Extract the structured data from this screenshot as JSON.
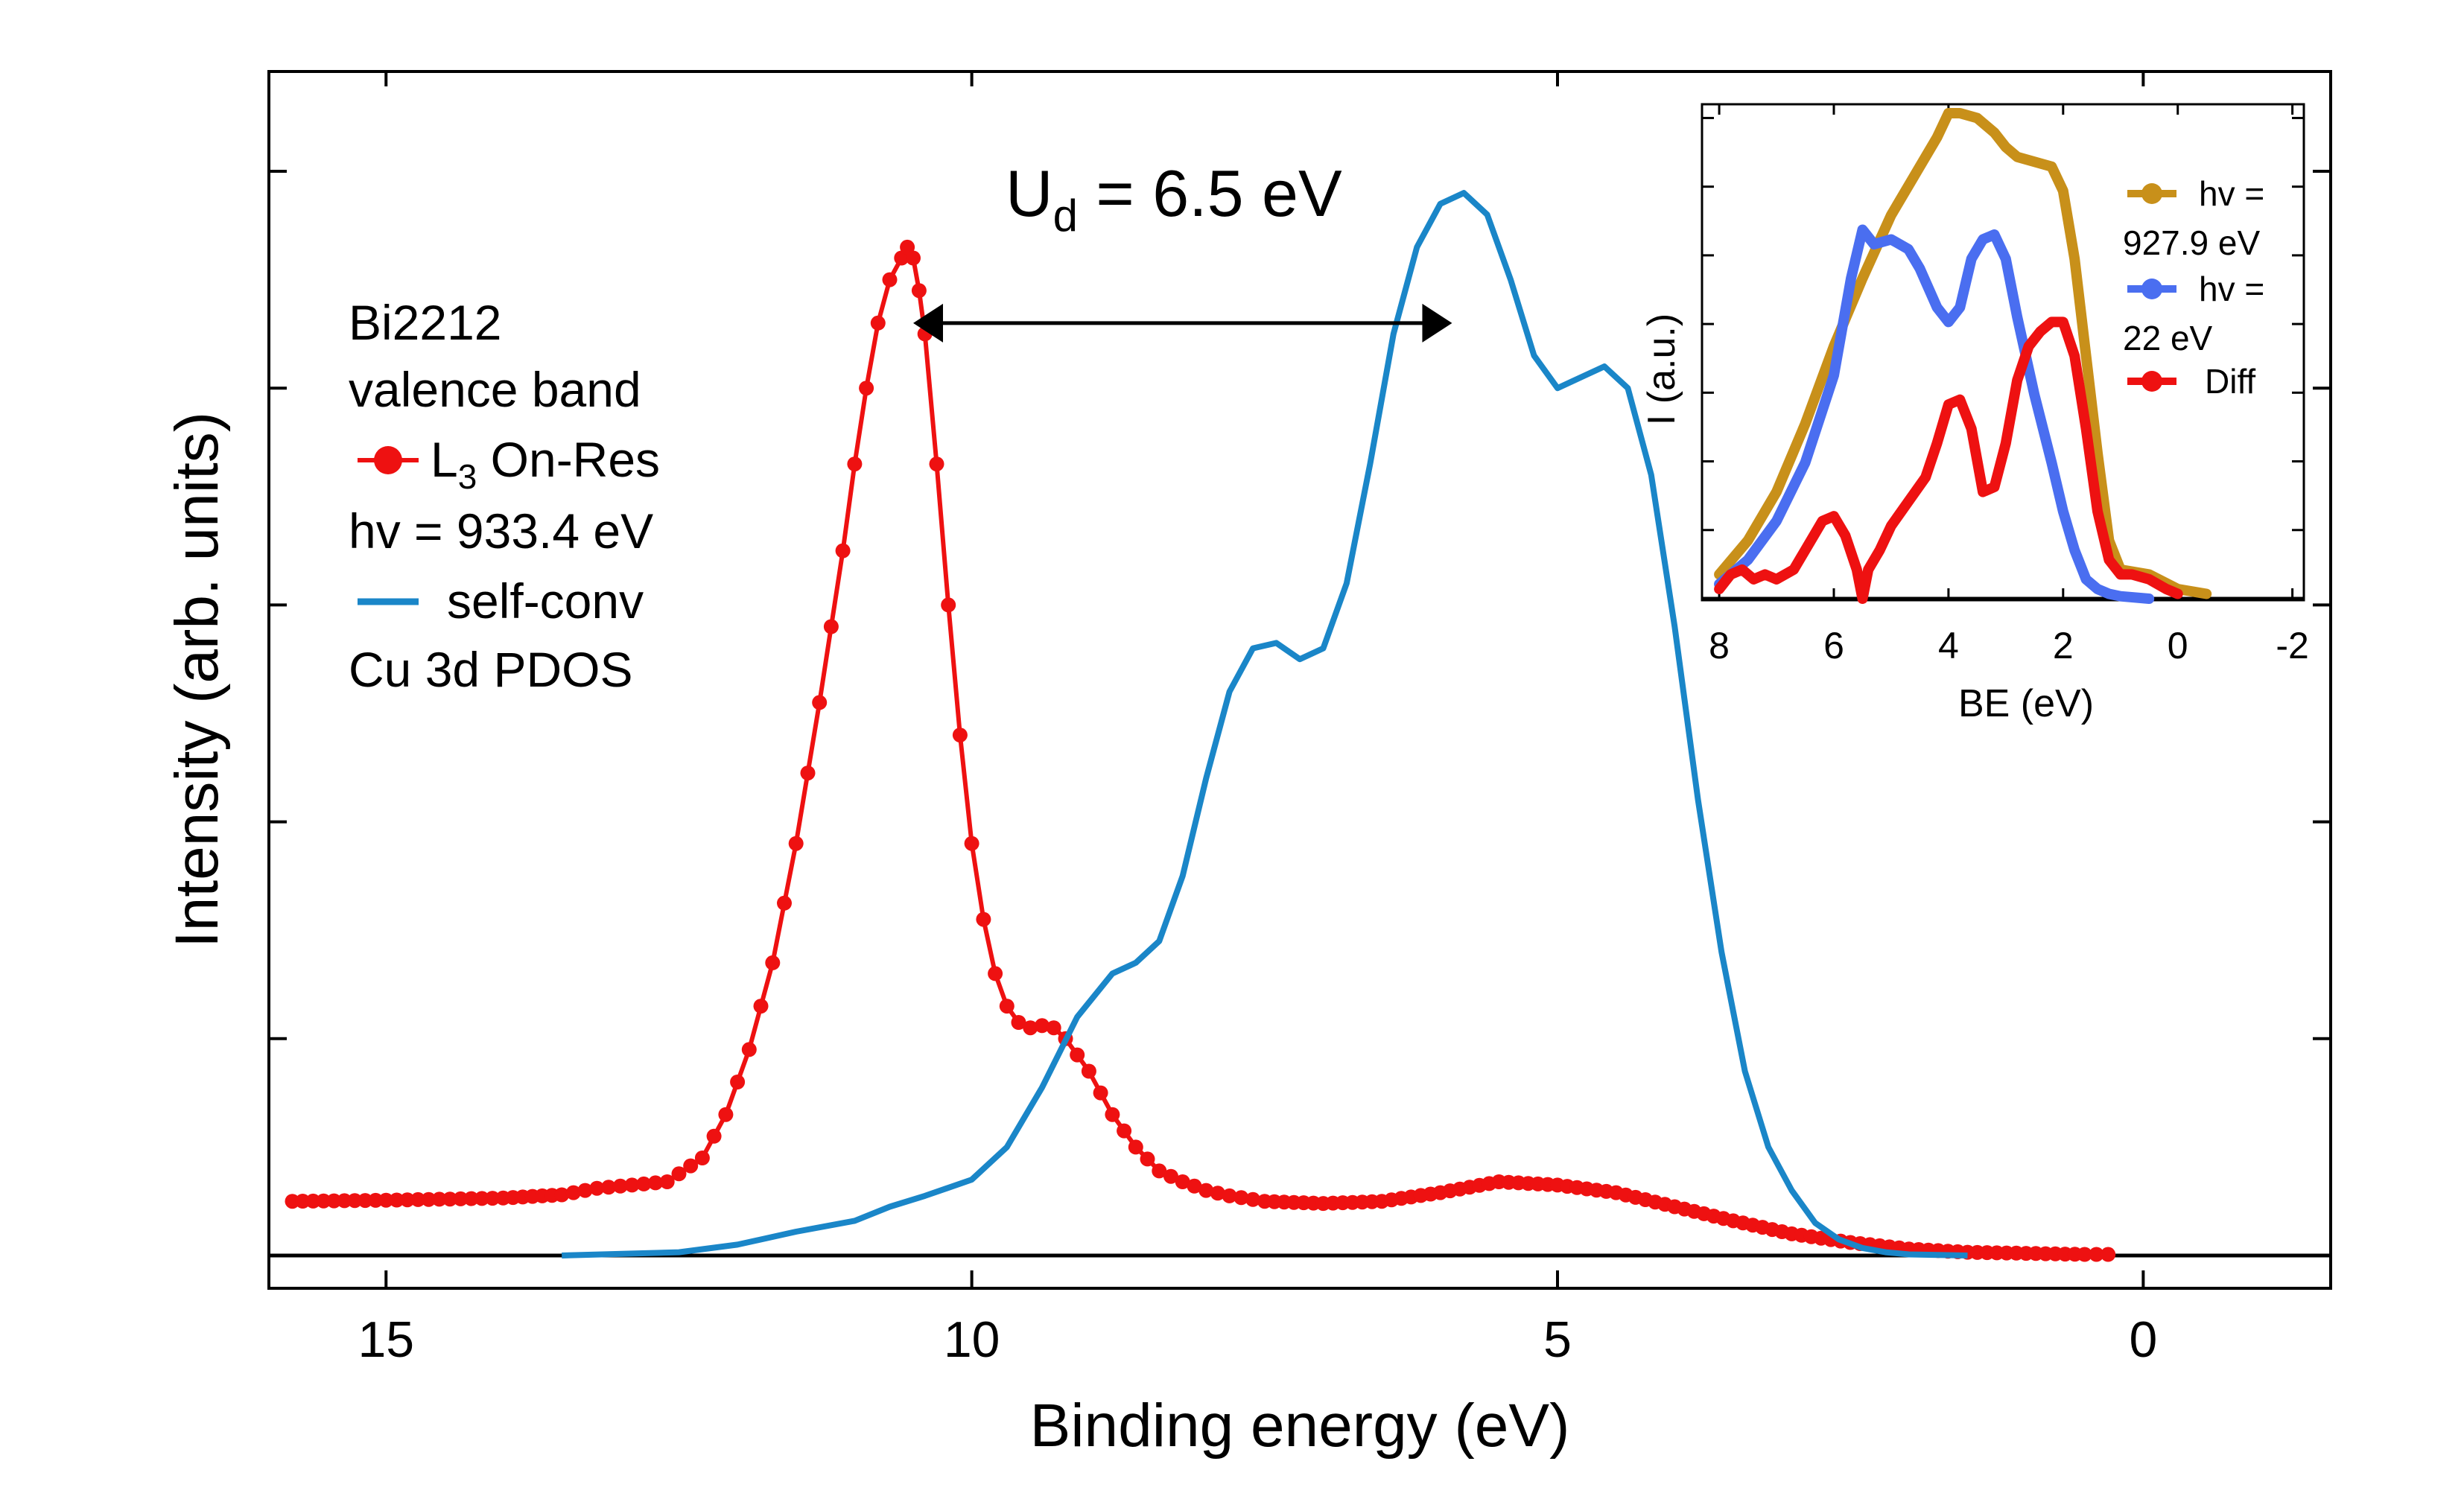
{
  "chart_data": [
    {
      "type": "line",
      "title": "",
      "xlabel": "Binding energy (eV)",
      "ylabel": "Intensity (arb. units)",
      "xlim": [
        16,
        -1.6
      ],
      "ylim": [
        0,
        1.0
      ],
      "x_ticks": [
        {
          "value": 15,
          "label": "15"
        },
        {
          "value": 10,
          "label": "10"
        },
        {
          "value": 5,
          "label": "5"
        },
        {
          "value": 0,
          "label": "0"
        }
      ],
      "annotation": {
        "label": "U",
        "subscript": "d",
        "text": " = 6.5 eV",
        "from": 10.5,
        "to": 5.9,
        "y": 0.86
      },
      "legend": {
        "position": "top-left",
        "title_lines": [
          "Bi2212",
          "valence band"
        ],
        "extra_lines": [
          "hv = 933.4 eV",
          "Cu 3d PDOS"
        ],
        "entries": [
          {
            "label": "L",
            "subscript": "3",
            "label_rest": " On-Res",
            "color": "#ee1111",
            "marker": "circle"
          },
          {
            "label": "self-conv",
            "color": "#1a86c8",
            "marker": "line"
          }
        ]
      },
      "series": [
        {
          "name": "L3 On-Res",
          "color": "#ee1111",
          "x": [
            15.8,
            15,
            14,
            13.5,
            13.2,
            13,
            12.6,
            12.3,
            12.1,
            11.9,
            11.7,
            11.5,
            11.3,
            11.1,
            11.0,
            10.9,
            10.8,
            10.7,
            10.6,
            10.55,
            10.5,
            10.45,
            10.4,
            10.3,
            10.2,
            10.1,
            10.0,
            9.9,
            9.8,
            9.7,
            9.6,
            9.5,
            9.4,
            9.3,
            9.2,
            9.0,
            8.8,
            8.6,
            8.4,
            8.2,
            8.0,
            7.8,
            7.5,
            7.0,
            6.5,
            6.0,
            5.5,
            5.0,
            4.5,
            4.0,
            3.5,
            3.0,
            2.5,
            2.0,
            1.5,
            1.0,
            0.5,
            0.3
          ],
          "y": [
            0.05,
            0.051,
            0.053,
            0.056,
            0.062,
            0.064,
            0.068,
            0.09,
            0.13,
            0.19,
            0.27,
            0.38,
            0.51,
            0.65,
            0.73,
            0.8,
            0.86,
            0.9,
            0.92,
            0.93,
            0.92,
            0.89,
            0.85,
            0.73,
            0.6,
            0.48,
            0.38,
            0.31,
            0.26,
            0.23,
            0.215,
            0.21,
            0.212,
            0.21,
            0.2,
            0.17,
            0.13,
            0.1,
            0.078,
            0.068,
            0.06,
            0.055,
            0.05,
            0.048,
            0.05,
            0.058,
            0.068,
            0.065,
            0.058,
            0.045,
            0.032,
            0.02,
            0.012,
            0.006,
            0.003,
            0.002,
            0.001,
            0.001
          ]
        },
        {
          "name": "self-conv",
          "color": "#1a86c8",
          "x": [
            13.5,
            12.5,
            12.0,
            11.5,
            11.0,
            10.7,
            10.4,
            10.0,
            9.7,
            9.4,
            9.1,
            8.8,
            8.6,
            8.4,
            8.2,
            8.0,
            7.8,
            7.6,
            7.4,
            7.2,
            7.0,
            6.8,
            6.6,
            6.4,
            6.2,
            6.0,
            5.8,
            5.6,
            5.4,
            5.2,
            5.0,
            4.8,
            4.6,
            4.4,
            4.2,
            4.0,
            3.8,
            3.6,
            3.4,
            3.2,
            3.0,
            2.8,
            2.6,
            2.4,
            2.2,
            2.0,
            1.5
          ],
          "y": [
            0.0,
            0.003,
            0.01,
            0.022,
            0.032,
            0.045,
            0.055,
            0.07,
            0.1,
            0.155,
            0.22,
            0.26,
            0.27,
            0.29,
            0.35,
            0.44,
            0.52,
            0.56,
            0.565,
            0.55,
            0.56,
            0.62,
            0.73,
            0.85,
            0.93,
            0.97,
            0.98,
            0.96,
            0.9,
            0.83,
            0.8,
            0.81,
            0.82,
            0.8,
            0.72,
            0.58,
            0.42,
            0.28,
            0.17,
            0.1,
            0.06,
            0.03,
            0.015,
            0.007,
            0.003,
            0.001,
            0.0
          ]
        }
      ]
    },
    {
      "type": "line",
      "title": "",
      "xlabel": "BE (eV)",
      "ylabel": "I (a.u.)",
      "xlim": [
        8.3,
        -2.2
      ],
      "ylim": [
        0,
        1.0
      ],
      "x_ticks": [
        {
          "value": 8,
          "label": "8"
        },
        {
          "value": 6,
          "label": "6"
        },
        {
          "value": 4,
          "label": "4"
        },
        {
          "value": 2,
          "label": "2"
        },
        {
          "value": 0,
          "label": "0"
        },
        {
          "value": -2,
          "label": "-2"
        }
      ],
      "legend": {
        "position": "top-right",
        "entries": [
          {
            "label_lines": [
              "hv =",
              "927.9 eV"
            ],
            "color": "#c8901a"
          },
          {
            "label_lines": [
              "hv =",
              "22 eV"
            ],
            "color": "#4a6ef0"
          },
          {
            "label_lines": [
              "Diff"
            ],
            "color": "#ee1111"
          }
        ]
      },
      "series": [
        {
          "name": "hv = 927.9 eV",
          "color": "#c8901a",
          "x": [
            8.0,
            7.5,
            7.0,
            6.5,
            6.0,
            5.5,
            5.0,
            4.7,
            4.5,
            4.2,
            4.0,
            3.8,
            3.5,
            3.2,
            3.0,
            2.8,
            2.5,
            2.2,
            2.0,
            1.8,
            1.6,
            1.4,
            1.2,
            1.0,
            0.5,
            0.0,
            -0.5
          ],
          "y": [
            0.05,
            0.12,
            0.22,
            0.36,
            0.52,
            0.66,
            0.79,
            0.85,
            0.89,
            0.95,
            1.0,
            1.0,
            0.99,
            0.96,
            0.93,
            0.91,
            0.9,
            0.89,
            0.84,
            0.7,
            0.5,
            0.3,
            0.12,
            0.06,
            0.05,
            0.02,
            0.01
          ]
        },
        {
          "name": "hv = 22 eV",
          "color": "#4a6ef0",
          "x": [
            8.0,
            7.5,
            7.0,
            6.5,
            6.0,
            5.7,
            5.5,
            5.3,
            5.0,
            4.7,
            4.5,
            4.2,
            4.0,
            3.8,
            3.6,
            3.4,
            3.2,
            3.0,
            2.8,
            2.5,
            2.2,
            2.0,
            1.8,
            1.6,
            1.4,
            1.2,
            1.0,
            0.5
          ],
          "y": [
            0.03,
            0.08,
            0.16,
            0.28,
            0.46,
            0.66,
            0.76,
            0.73,
            0.74,
            0.72,
            0.68,
            0.6,
            0.57,
            0.6,
            0.7,
            0.74,
            0.75,
            0.7,
            0.58,
            0.42,
            0.28,
            0.18,
            0.1,
            0.04,
            0.02,
            0.01,
            0.005,
            0.0
          ]
        },
        {
          "name": "Diff",
          "color": "#ee1111",
          "x": [
            8.0,
            7.8,
            7.6,
            7.4,
            7.2,
            7.0,
            6.7,
            6.4,
            6.2,
            6.0,
            5.8,
            5.6,
            5.5,
            5.4,
            5.2,
            5.0,
            4.7,
            4.4,
            4.2,
            4.0,
            3.8,
            3.6,
            3.4,
            3.2,
            3.0,
            2.8,
            2.6,
            2.4,
            2.2,
            2.0,
            1.8,
            1.6,
            1.4,
            1.2,
            1.0,
            0.8,
            0.5,
            0.2,
            0.0
          ],
          "y": [
            0.02,
            0.05,
            0.06,
            0.04,
            0.05,
            0.04,
            0.06,
            0.12,
            0.16,
            0.17,
            0.13,
            0.06,
            0.0,
            0.06,
            0.1,
            0.15,
            0.2,
            0.25,
            0.32,
            0.4,
            0.41,
            0.35,
            0.22,
            0.23,
            0.32,
            0.45,
            0.52,
            0.55,
            0.57,
            0.57,
            0.5,
            0.35,
            0.18,
            0.08,
            0.05,
            0.05,
            0.04,
            0.02,
            0.01
          ]
        }
      ]
    }
  ]
}
